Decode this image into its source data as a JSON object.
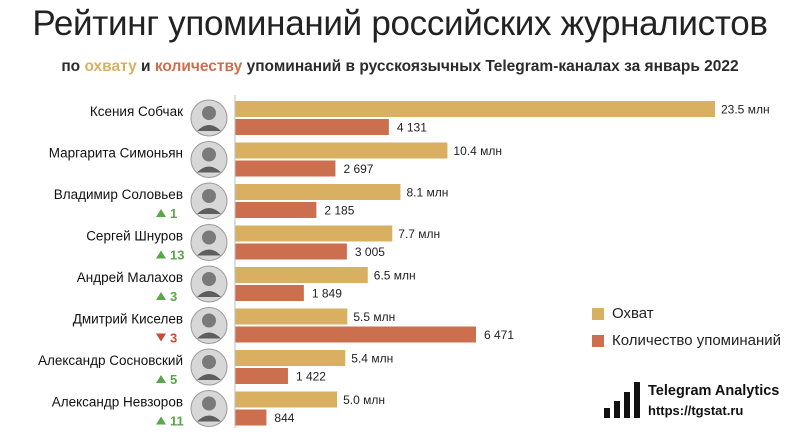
{
  "title": "Рейтинг упоминаний российских журналистов",
  "subtitle": {
    "prefix": "по ",
    "reach_word": "охвату",
    "and": " и ",
    "count_word": "количеству",
    "suffix": " упоминаний в русскоязычных Telegram-каналах за январь 2022"
  },
  "colors": {
    "reach": "#d9b062",
    "mentions": "#cc6f4f",
    "up": "#5aa64a",
    "down": "#c94a38"
  },
  "legend": {
    "reach": "Охват",
    "mentions": "Количество упоминаний"
  },
  "brand": {
    "name": "Telegram Analytics",
    "url": "https://tgstat.ru",
    "logo_icon": "bar-chart-logo-icon"
  },
  "chart_data": {
    "type": "bar",
    "orientation": "horizontal",
    "categories": [
      "Ксения Собчак",
      "Маргарита Симоньян",
      "Владимир Соловьев",
      "Сергей Шнуров",
      "Андрей Малахов",
      "Дмитрий Киселев",
      "Александр Сосновский",
      "Александр Невзоров"
    ],
    "series": [
      {
        "name": "Охват",
        "values": [
          23.5,
          10.4,
          8.1,
          7.7,
          6.5,
          5.5,
          5.4,
          5.0
        ],
        "labels": [
          "23.5 млн",
          "10.4 млн",
          "8.1 млн",
          "7.7 млн",
          "6.5 млн",
          "5.5 млн",
          "5.4 млн",
          "5.0 млн"
        ]
      },
      {
        "name": "Количество упоминаний",
        "values": [
          4131,
          2697,
          2185,
          3005,
          1849,
          6471,
          1422,
          844
        ],
        "labels": [
          "4 131",
          "2 697",
          "2 185",
          "3 005",
          "1 849",
          "6 471",
          "1 422",
          "844"
        ]
      }
    ],
    "rank_change": [
      null,
      null,
      {
        "dir": "up",
        "value": "1"
      },
      {
        "dir": "up",
        "value": "13"
      },
      {
        "dir": "up",
        "value": "3"
      },
      {
        "dir": "down",
        "value": "3"
      },
      {
        "dir": "up",
        "value": "5"
      },
      {
        "dir": "up",
        "value": "11"
      }
    ],
    "legend_position": "right",
    "grid": false
  }
}
